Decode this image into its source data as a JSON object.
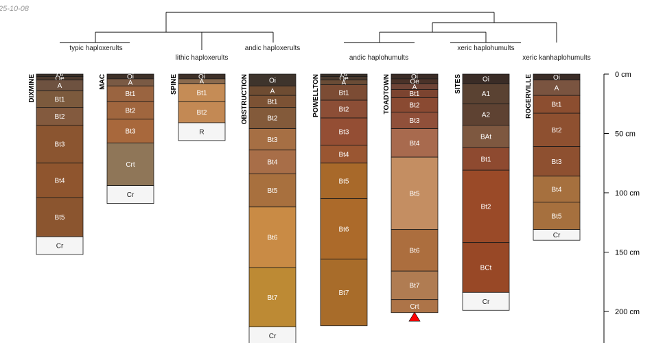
{
  "date_stamp": "25-10-08",
  "chart_data": {
    "type": "soil-profile-sketch",
    "depth_unit": "cm",
    "depth_ticks": [
      {
        "value": 0,
        "label": "0 cm"
      },
      {
        "value": 50,
        "label": "50 cm"
      },
      {
        "value": 100,
        "label": "100 cm"
      },
      {
        "value": 150,
        "label": "150 cm"
      },
      {
        "value": 200,
        "label": "200 cm"
      }
    ],
    "dendrogram_labels": [
      {
        "name": "typic-haploxerults",
        "text": "typic haploxerults"
      },
      {
        "name": "lithic-haploxerults",
        "text": "lithic haploxerults"
      },
      {
        "name": "andic-haploxerults",
        "text": "andic haploxerults"
      },
      {
        "name": "andic-haplohumults",
        "text": "andic haplohumults"
      },
      {
        "name": "xeric-haplohumults",
        "text": "xeric haplohumults"
      },
      {
        "name": "xeric-kanhaplohumults",
        "text": "xeric kanhaplohumults"
      }
    ],
    "profiles": [
      {
        "id": "DIXMINE",
        "horizons": [
          {
            "name": "Oi",
            "top": 0,
            "bottom": 2,
            "color": "#3b3028"
          },
          {
            "name": "Oe",
            "top": 2,
            "bottom": 5,
            "color": "#4c3a2e"
          },
          {
            "name": "A",
            "top": 5,
            "bottom": 14,
            "color": "#6e5240"
          },
          {
            "name": "Bt1",
            "top": 14,
            "bottom": 28,
            "color": "#7c5a3d"
          },
          {
            "name": "Bt2",
            "top": 28,
            "bottom": 43,
            "color": "#835a3e"
          },
          {
            "name": "Bt3",
            "top": 43,
            "bottom": 75,
            "color": "#8b5530"
          },
          {
            "name": "Bt4",
            "top": 75,
            "bottom": 104,
            "color": "#8f552e"
          },
          {
            "name": "Bt5",
            "top": 104,
            "bottom": 137,
            "color": "#8b552f"
          },
          {
            "name": "Cr",
            "top": 137,
            "bottom": 152,
            "color": "#f5f5f5"
          }
        ]
      },
      {
        "id": "MAC",
        "horizons": [
          {
            "name": "Oi",
            "top": 0,
            "bottom": 4,
            "color": "#3e3028"
          },
          {
            "name": "A",
            "top": 4,
            "bottom": 10,
            "color": "#7a5a44"
          },
          {
            "name": "Bt1",
            "top": 10,
            "bottom": 23,
            "color": "#9a6440"
          },
          {
            "name": "Bt2",
            "top": 23,
            "bottom": 38,
            "color": "#a0663e"
          },
          {
            "name": "Bt3",
            "top": 38,
            "bottom": 58,
            "color": "#a8683c"
          },
          {
            "name": "Crt",
            "top": 58,
            "bottom": 94,
            "color": "#8f7658"
          },
          {
            "name": "Cr",
            "top": 94,
            "bottom": 109,
            "color": "#f5f5f5"
          }
        ]
      },
      {
        "id": "SPINE",
        "horizons": [
          {
            "name": "Oi",
            "top": 0,
            "bottom": 4,
            "color": "#3e3028"
          },
          {
            "name": "A",
            "top": 4,
            "bottom": 8,
            "color": "#8a6a4e"
          },
          {
            "name": "Bt1",
            "top": 8,
            "bottom": 23,
            "color": "#c58c56"
          },
          {
            "name": "Bt2",
            "top": 23,
            "bottom": 41,
            "color": "#c38954"
          },
          {
            "name": "R",
            "top": 41,
            "bottom": 56,
            "color": "#f5f5f5"
          }
        ]
      },
      {
        "id": "OBSTRUCTION",
        "horizons": [
          {
            "name": "Oi",
            "top": 0,
            "bottom": 10,
            "color": "#3e342c"
          },
          {
            "name": "A",
            "top": 10,
            "bottom": 18,
            "color": "#6e4c32"
          },
          {
            "name": "Bt1",
            "top": 18,
            "bottom": 28,
            "color": "#7c5234"
          },
          {
            "name": "Bt2",
            "top": 28,
            "bottom": 46,
            "color": "#835a3a"
          },
          {
            "name": "Bt3",
            "top": 46,
            "bottom": 64,
            "color": "#a66f44"
          },
          {
            "name": "Bt4",
            "top": 64,
            "bottom": 84,
            "color": "#a86e48"
          },
          {
            "name": "Bt5",
            "top": 84,
            "bottom": 112,
            "color": "#a8703e"
          },
          {
            "name": "Bt6",
            "top": 112,
            "bottom": 163,
            "color": "#c98b45"
          },
          {
            "name": "Bt7",
            "top": 163,
            "bottom": 213,
            "color": "#bd8a34"
          },
          {
            "name": "Cr",
            "top": 213,
            "bottom": 228,
            "color": "#f5f5f5"
          }
        ]
      },
      {
        "id": "POWELLTON",
        "horizons": [
          {
            "name": "Oi",
            "top": 0,
            "bottom": 2,
            "color": "#3a3028"
          },
          {
            "name": "Oe",
            "top": 2,
            "bottom": 5,
            "color": "#4a3a2e"
          },
          {
            "name": "A",
            "top": 5,
            "bottom": 9,
            "color": "#6a4c36"
          },
          {
            "name": "Bt1",
            "top": 9,
            "bottom": 22,
            "color": "#7c4c34"
          },
          {
            "name": "Bt2",
            "top": 22,
            "bottom": 37,
            "color": "#8c4e36"
          },
          {
            "name": "Bt3",
            "top": 37,
            "bottom": 60,
            "color": "#944e34"
          },
          {
            "name": "Bt4",
            "top": 60,
            "bottom": 75,
            "color": "#9a5632"
          },
          {
            "name": "Bt5",
            "top": 75,
            "bottom": 105,
            "color": "#a8692a"
          },
          {
            "name": "Bt6",
            "top": 105,
            "bottom": 156,
            "color": "#ac6a2a"
          },
          {
            "name": "Bt7",
            "top": 156,
            "bottom": 212,
            "color": "#a86c2a"
          }
        ]
      },
      {
        "id": "TOADTOWN",
        "horizons": [
          {
            "name": "Oi",
            "top": 0,
            "bottom": 4,
            "color": "#3a2c26"
          },
          {
            "name": "Oe",
            "top": 4,
            "bottom": 8,
            "color": "#4a3228"
          },
          {
            "name": "A",
            "top": 8,
            "bottom": 13,
            "color": "#6e4436"
          },
          {
            "name": "Bt1",
            "top": 13,
            "bottom": 20,
            "color": "#7c4430"
          },
          {
            "name": "Bt2",
            "top": 20,
            "bottom": 32,
            "color": "#8a4a32"
          },
          {
            "name": "Bt3",
            "top": 32,
            "bottom": 46,
            "color": "#90503a"
          },
          {
            "name": "Bt4",
            "top": 46,
            "bottom": 70,
            "color": "#a86a4e"
          },
          {
            "name": "Bt5",
            "top": 70,
            "bottom": 131,
            "color": "#c48e62"
          },
          {
            "name": "Bt6",
            "top": 131,
            "bottom": 166,
            "color": "#ac6e3e"
          },
          {
            "name": "Bt7",
            "top": 166,
            "bottom": 190,
            "color": "#b07c52"
          },
          {
            "name": "Crt",
            "top": 190,
            "bottom": 201,
            "color": "#ad7448"
          }
        ]
      },
      {
        "id": "SITES",
        "horizons": [
          {
            "name": "Oi",
            "top": 0,
            "bottom": 8,
            "color": "#3a2c26"
          },
          {
            "name": "A1",
            "top": 8,
            "bottom": 25,
            "color": "#5a4232"
          },
          {
            "name": "A2",
            "top": 25,
            "bottom": 43,
            "color": "#5e4232"
          },
          {
            "name": "BAt",
            "top": 43,
            "bottom": 62,
            "color": "#7e5840"
          },
          {
            "name": "Bt1",
            "top": 62,
            "bottom": 81,
            "color": "#8e4a30"
          },
          {
            "name": "Bt2",
            "top": 81,
            "bottom": 142,
            "color": "#9a4a28"
          },
          {
            "name": "BCt",
            "top": 142,
            "bottom": 184,
            "color": "#984826"
          },
          {
            "name": "Cr",
            "top": 184,
            "bottom": 199,
            "color": "#f5f5f5"
          }
        ]
      },
      {
        "id": "ROGERVILLE",
        "horizons": [
          {
            "name": "Oi",
            "top": 0,
            "bottom": 5,
            "color": "#3a2c26"
          },
          {
            "name": "A",
            "top": 5,
            "bottom": 18,
            "color": "#7a5440"
          },
          {
            "name": "Bt1",
            "top": 18,
            "bottom": 33,
            "color": "#8c4e30"
          },
          {
            "name": "Bt2",
            "top": 33,
            "bottom": 61,
            "color": "#8e5030"
          },
          {
            "name": "Bt3",
            "top": 61,
            "bottom": 86,
            "color": "#8e5030"
          },
          {
            "name": "Bt4",
            "top": 86,
            "bottom": 108,
            "color": "#a6703e"
          },
          {
            "name": "Bt5",
            "top": 108,
            "bottom": 131,
            "color": "#a6703e"
          },
          {
            "name": "Cr",
            "top": 131,
            "bottom": 140,
            "color": "#f5f5f5"
          }
        ]
      }
    ],
    "marker": {
      "profile": "TOADTOWN",
      "depth": 203,
      "color": "#ff0000"
    }
  }
}
